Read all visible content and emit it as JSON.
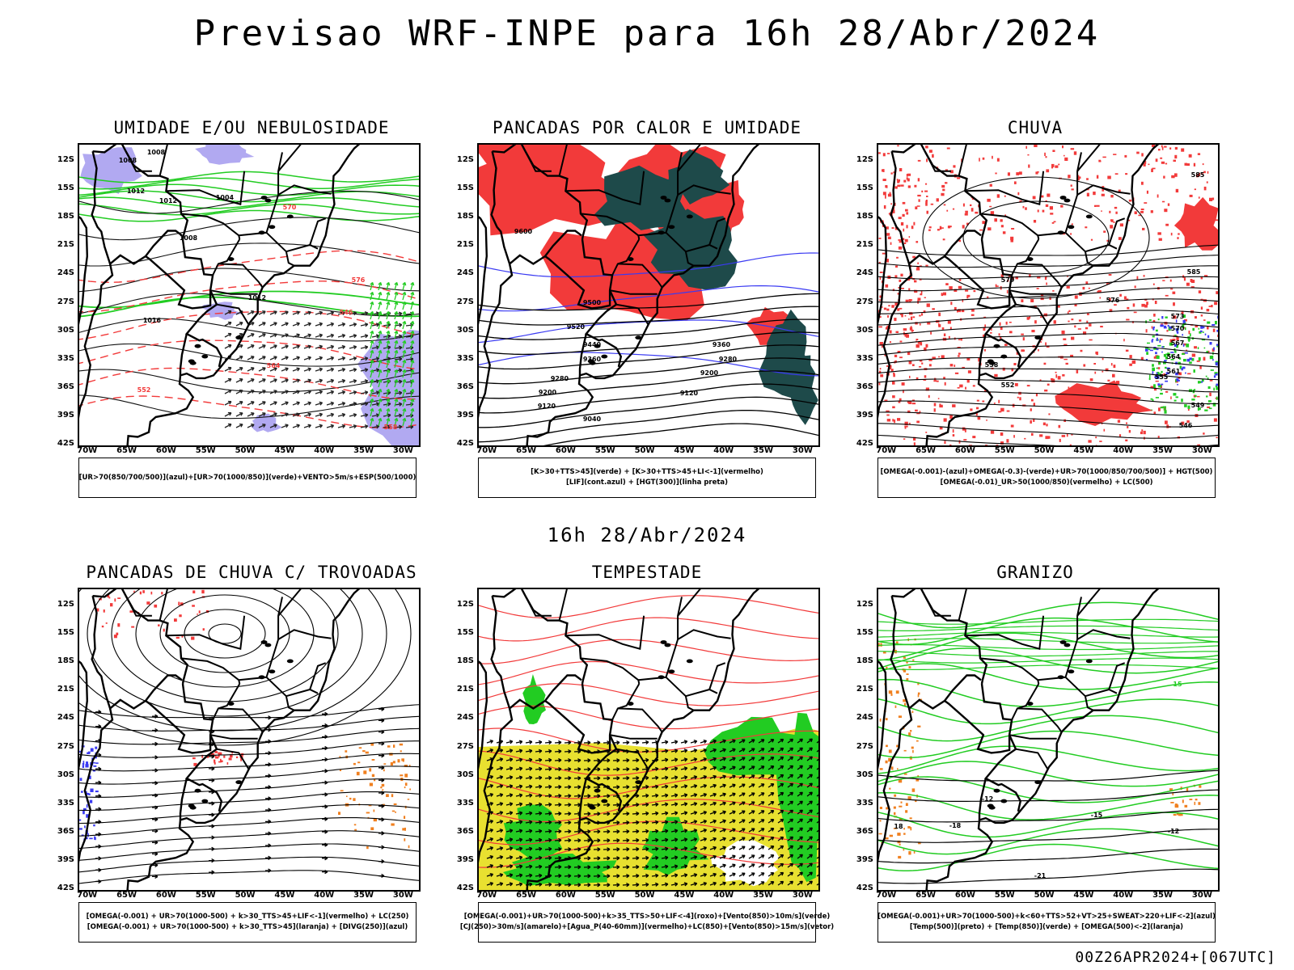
{
  "header": {
    "title": "Previsao WRF-INPE  para 16h 28/Abr/2024",
    "mid_date": "16h 28/Abr/2024",
    "footer": "00Z26APR2024+[067UTC]"
  },
  "axes": {
    "lat_labels": [
      "12S",
      "15S",
      "18S",
      "21S",
      "24S",
      "27S",
      "30S",
      "33S",
      "36S",
      "39S",
      "42S"
    ],
    "lon_labels": [
      "70W",
      "65W",
      "60W",
      "55W",
      "50W",
      "45W",
      "40W",
      "35W",
      "30W"
    ]
  },
  "colors": {
    "red": "#f23a3a",
    "green": "#22cc22",
    "blue": "#3a3af2",
    "lavender": "#a8a0f0",
    "dark_teal": "#1e4a4a",
    "yellow": "#e8e030",
    "orange": "#f08020",
    "black": "#000000"
  },
  "panels": [
    {
      "title": "UMIDADE E/OU NEBULOSIDADE",
      "legend": [
        "[UR>70(850/700/500)](azul)+[UR>70(1000/850)](verde)+VENTO>5m/s+ESP(500/1000)"
      ],
      "contour_labels": [
        "1008",
        "1008",
        "1012",
        "1012",
        "1008",
        "1004",
        "1012",
        "1016",
        "570",
        "576",
        "564",
        "558",
        "552",
        "546"
      ]
    },
    {
      "title": "PANCADAS POR CALOR E UMIDADE",
      "legend": [
        "[K>30+TTS>45](verde) + [K>30+TTS>45+LI<-1](vermelho)",
        "[LIF](cont.azul) + [HGT(300)](linha preta)"
      ],
      "contour_labels": [
        "9600",
        "9500",
        "9520",
        "9440",
        "9360",
        "9280",
        "9200",
        "9120",
        "9040",
        "9360",
        "9280",
        "9200",
        "9120"
      ]
    },
    {
      "title": "CHUVA",
      "legend": [
        "[OMEGA(-0.001)-(azul)+OMEGA(-0.3)-(verde)+UR>70(1000/850/700/500)] + HGT(500)",
        "[OMEGA(-0.01)_UR>50(1000/850)(vermelho) + LC(500)"
      ],
      "contour_labels": [
        "585",
        "585",
        "579",
        "576",
        "573",
        "570",
        "567",
        "564",
        "561",
        "558",
        "555",
        "552",
        "549",
        "546"
      ]
    },
    {
      "title": "PANCADAS DE CHUVA C/ TROVOADAS",
      "legend": [
        "[OMEGA(-0.001) + UR>70(1000-500) + k>30_TTS>45+LIF<-1](vermelho) + LC(250)",
        "[OMEGA(-0.001) + UR>70(1000-500) + k>30_TTS>45](laranja) + [DIVG(250)](azul)"
      ],
      "contour_labels": []
    },
    {
      "title": "TEMPESTADE",
      "legend": [
        "[OMEGA(-0.001)+UR>70(1000-500)+k>35_TTS>50+LIF<-4](roxo)+[Vento(850)>10m/s](verde)",
        "[CJ(250)>30m/s](amarelo)+[Agua_P(40-60mm)](vermelho)+LC(850)+[Vento(850)>15m/s](vetor)"
      ],
      "contour_labels": []
    },
    {
      "title": "GRANIZO",
      "legend": [
        "[OMEGA(-0.001)+UR>70(1000-500)+k<60+TTS>52+VT>25+SWEAT>220+LIF<-2](azul)",
        "[Temp(500)](preto) + [Temp(850)](verde) + [OMEGA(500)<-2](laranja)"
      ],
      "contour_labels": [
        "-12",
        "-15",
        "-18",
        "-21",
        "15",
        "-12",
        "18"
      ]
    }
  ]
}
